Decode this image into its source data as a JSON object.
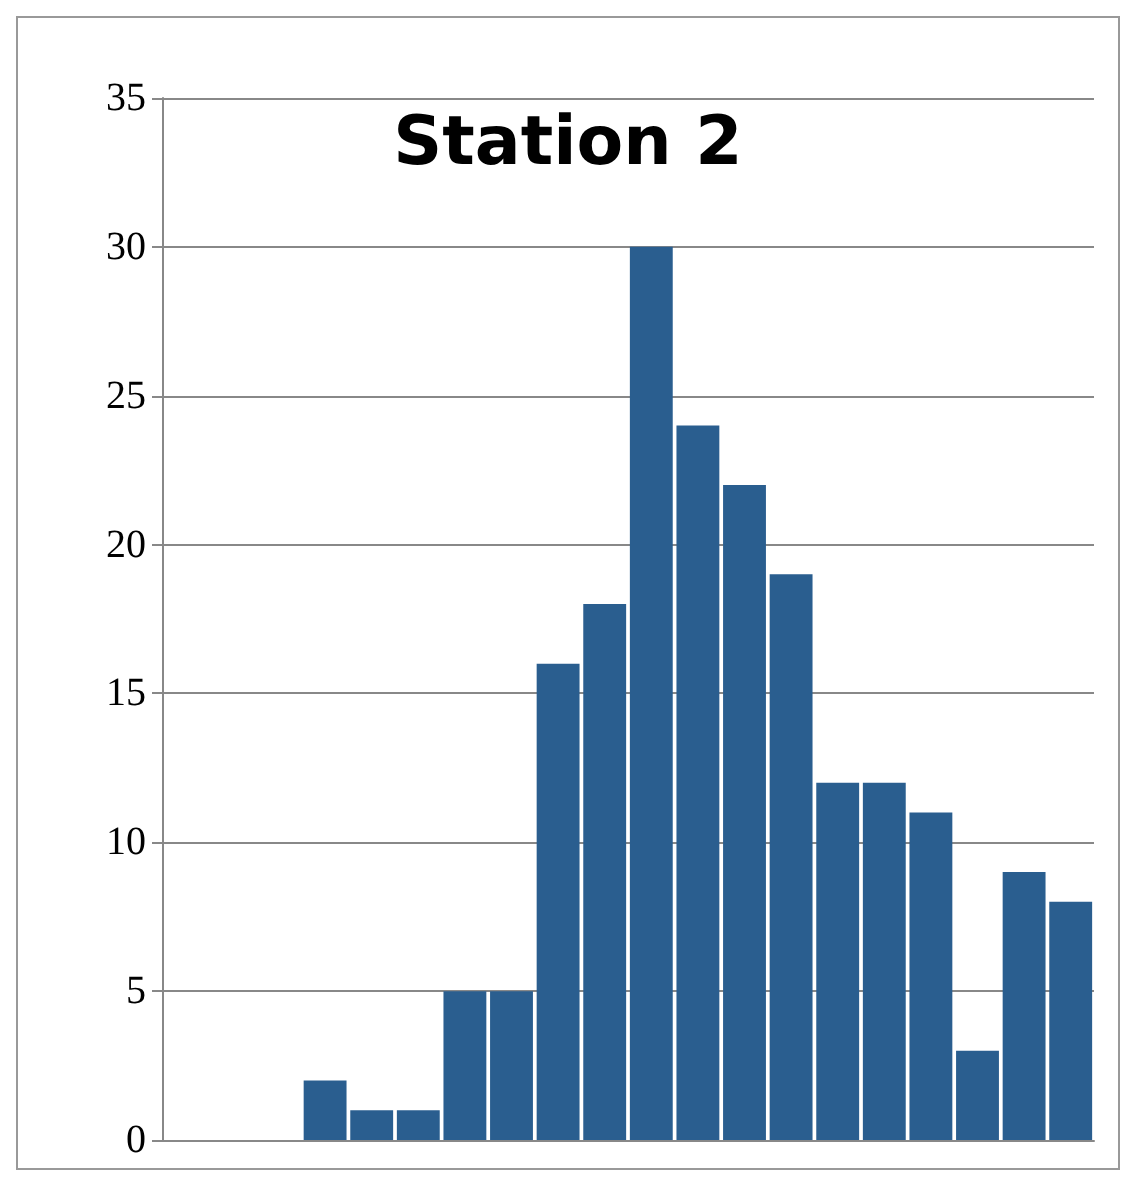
{
  "chart_data": {
    "type": "bar",
    "title": "Station 2",
    "categories": [
      null,
      null,
      null,
      null,
      null,
      null,
      null,
      null,
      null,
      null,
      null,
      null,
      null,
      null,
      null,
      null,
      null,
      null,
      null,
      null
    ],
    "values": [
      0,
      0,
      0,
      2,
      1,
      1,
      5,
      5,
      16,
      18,
      30,
      24,
      22,
      19,
      12,
      12,
      11,
      3,
      9,
      8
    ],
    "color": "#2a5e8f",
    "ylim": [
      0,
      35
    ],
    "yticks": [
      0,
      5,
      10,
      15,
      20,
      25,
      30,
      35
    ],
    "grid": "y",
    "tick_labels": "y"
  }
}
